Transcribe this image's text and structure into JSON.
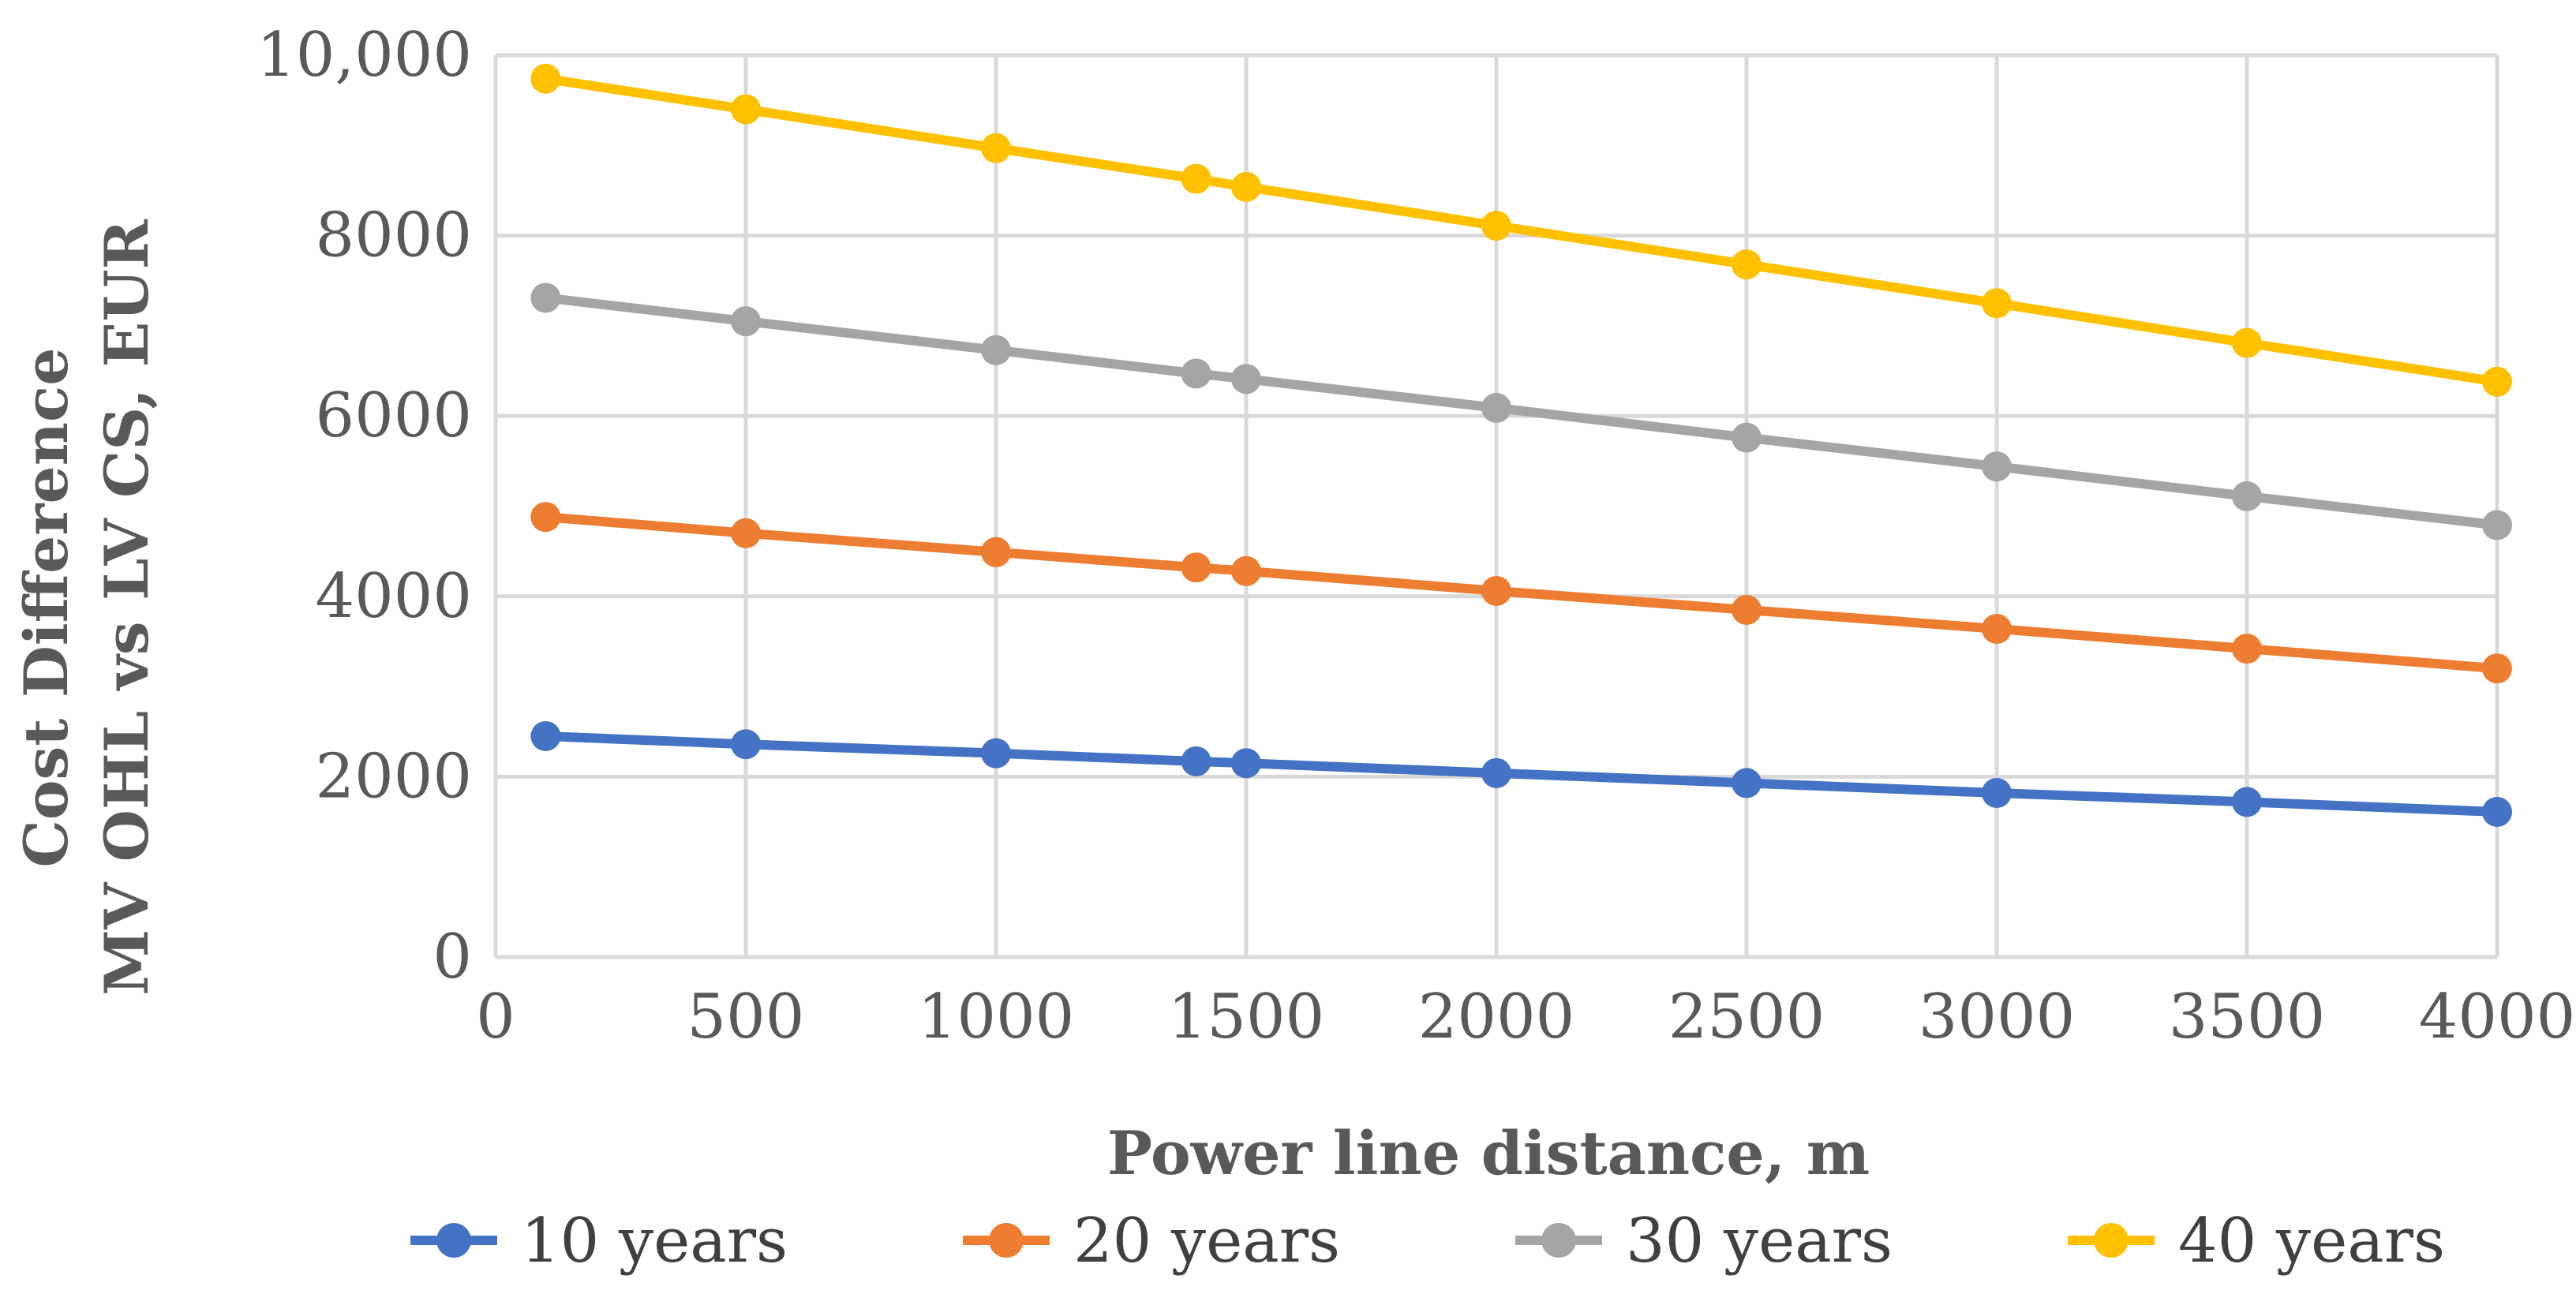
{
  "chart_data": {
    "type": "line",
    "title": "",
    "xlabel": "Power line distance, m",
    "ylabel_lines": [
      "Cost Difference",
      "MV OHL vs LV CS,  EUR"
    ],
    "xlim": [
      0,
      4000
    ],
    "ylim": [
      0,
      10000
    ],
    "grid": true,
    "legend_position": "bottom",
    "x_ticks": [
      0,
      500,
      1000,
      1500,
      2000,
      2500,
      3000,
      3500,
      4000
    ],
    "x_tick_labels": [
      "0",
      "500",
      "1000",
      "1500",
      "2000",
      "2500",
      "3000",
      "3500",
      "4000"
    ],
    "y_ticks": [
      0,
      2000,
      4000,
      6000,
      8000,
      10000
    ],
    "y_tick_labels": [
      "0",
      "2000",
      "4000",
      "6000",
      "8000",
      "10,000"
    ],
    "x": [
      100,
      500,
      1000,
      1400,
      1500,
      2000,
      2500,
      3000,
      3500,
      4000
    ],
    "series": [
      {
        "name": "10 years",
        "color": "#4472C4",
        "values": [
          2450,
          2360,
          2260,
          2170,
          2150,
          2040,
          1930,
          1820,
          1720,
          1610
        ]
      },
      {
        "name": "20 years",
        "color": "#ED7D31",
        "values": [
          4880,
          4700,
          4490,
          4320,
          4280,
          4060,
          3850,
          3640,
          3420,
          3200
        ]
      },
      {
        "name": "30 years",
        "color": "#A5A5A5",
        "values": [
          7310,
          7050,
          6730,
          6470,
          6410,
          6090,
          5760,
          5440,
          5110,
          4790
        ]
      },
      {
        "name": "40 years",
        "color": "#FFC000",
        "values": [
          9740,
          9400,
          8970,
          8630,
          8540,
          8110,
          7680,
          7250,
          6810,
          6380
        ]
      }
    ]
  }
}
